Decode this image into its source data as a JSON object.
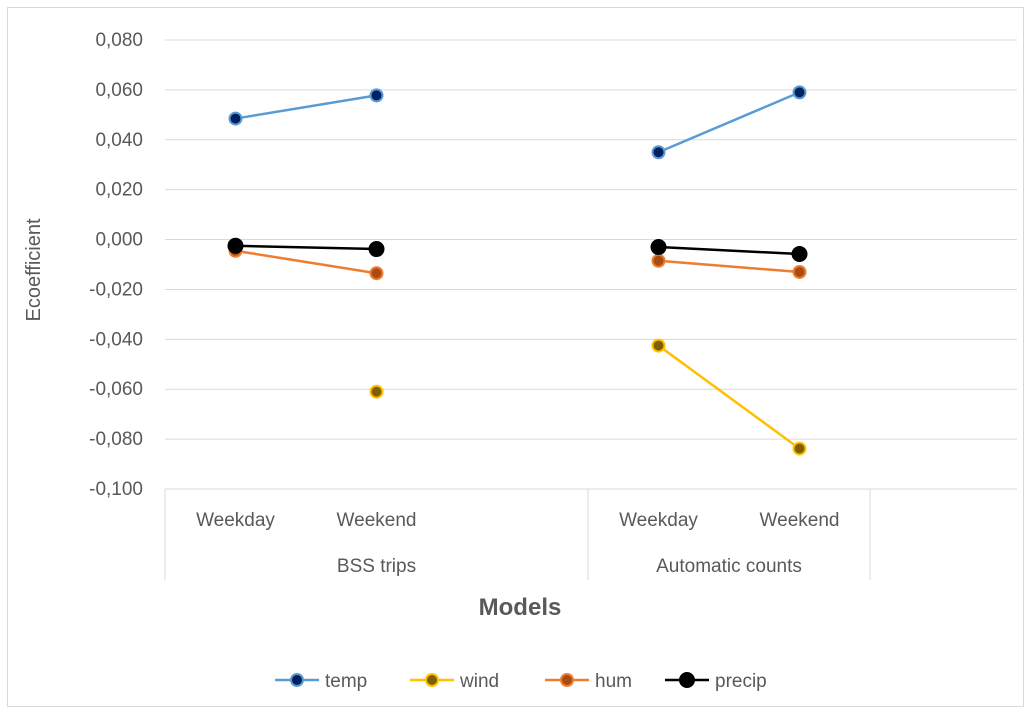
{
  "chart_data": {
    "type": "line",
    "title": "",
    "ylabel": "Ecoefficient",
    "xlabel": "Models",
    "ylim": [
      -0.1,
      0.08
    ],
    "yticks": [
      0.08,
      0.06,
      0.04,
      0.02,
      0.0,
      -0.02,
      -0.04,
      -0.06,
      -0.08,
      -0.1
    ],
    "ytick_labels": [
      "0,080",
      "0,060",
      "0,040",
      "0,020",
      "0,000",
      "-0,020",
      "-0,040",
      "-0,060",
      "-0,080",
      "-0,100"
    ],
    "groups": [
      {
        "label": "BSS trips",
        "categories": [
          "Weekday",
          "Weekend"
        ]
      },
      {
        "label": "Automatic counts",
        "categories": [
          "Weekday",
          "Weekend"
        ]
      }
    ],
    "grid": true,
    "legend_position": "bottom",
    "series": [
      {
        "name": "temp",
        "color": "#5b9bd5",
        "marker_fill": "#002060",
        "values": [
          [
            0.0485,
            0.0578
          ],
          [
            0.035,
            0.059
          ]
        ]
      },
      {
        "name": "wind",
        "color": "#ffc000",
        "marker_fill": "#7f6000",
        "values": [
          [
            null,
            -0.061
          ],
          [
            -0.0425,
            -0.0838
          ]
        ]
      },
      {
        "name": "hum",
        "color": "#ed7d31",
        "marker_fill": "#a94c10",
        "values": [
          [
            -0.0045,
            -0.0135
          ],
          [
            -0.0085,
            -0.013
          ]
        ]
      },
      {
        "name": "precip",
        "color": "#000000",
        "marker_fill": "#000000",
        "values": [
          [
            -0.0025,
            -0.0038
          ],
          [
            -0.003,
            -0.0058
          ]
        ]
      }
    ]
  }
}
